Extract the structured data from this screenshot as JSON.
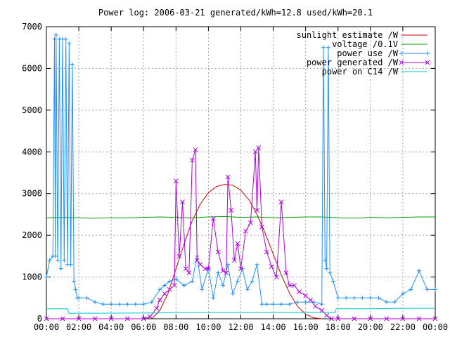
{
  "chart_data": {
    "type": "line",
    "title": "Power log: 2006-03-21 generated/kWh=12.8 used/kWh=20.1",
    "xlabel": "",
    "ylabel": "",
    "xlim": [
      0,
      24
    ],
    "ylim": [
      0,
      7000
    ],
    "grid": true,
    "legend_position": "top-right",
    "x_tick_labels": [
      "00:00",
      "02:00",
      "04:00",
      "06:00",
      "08:00",
      "10:00",
      "12:00",
      "14:00",
      "16:00",
      "18:00",
      "20:00",
      "22:00",
      "00:00"
    ],
    "y_tick_labels": [
      "0",
      "1000",
      "2000",
      "3000",
      "4000",
      "5000",
      "6000",
      "7000"
    ],
    "series": [
      {
        "name": "sunlight estimate /W",
        "color": "#cc0000",
        "marker": "none",
        "x": [
          6.5,
          7.0,
          7.5,
          8.0,
          8.5,
          9.0,
          9.5,
          10.0,
          10.5,
          11.0,
          11.5,
          12.0,
          12.5,
          13.0,
          13.5,
          14.0,
          14.5,
          15.0,
          15.5,
          16.0,
          16.5,
          17.0
        ],
        "y": [
          0,
          200,
          600,
          1200,
          1800,
          2350,
          2750,
          3020,
          3170,
          3220,
          3200,
          3080,
          2850,
          2500,
          2050,
          1550,
          1050,
          620,
          300,
          110,
          20,
          0
        ]
      },
      {
        "name": "voltage /0.1V",
        "color": "#00a000",
        "marker": "none",
        "x": [
          0,
          1,
          2,
          3,
          4,
          5,
          6,
          7,
          8,
          9,
          10,
          11,
          12,
          13,
          14,
          15,
          16,
          17,
          18,
          19,
          20,
          21,
          22,
          23,
          24
        ],
        "y": [
          2420,
          2430,
          2420,
          2410,
          2420,
          2420,
          2430,
          2440,
          2430,
          2420,
          2440,
          2450,
          2430,
          2440,
          2420,
          2430,
          2440,
          2440,
          2420,
          2410,
          2430,
          2420,
          2430,
          2440,
          2440
        ]
      },
      {
        "name": "power use /W",
        "color": "#1e90ff",
        "marker": "plus",
        "x": [
          0,
          0.2,
          0.4,
          0.5,
          0.55,
          0.6,
          0.7,
          0.8,
          0.9,
          1.0,
          1.1,
          1.2,
          1.3,
          1.4,
          1.5,
          1.6,
          1.7,
          1.8,
          1.9,
          2.0,
          2.5,
          3.0,
          3.5,
          4.0,
          4.5,
          5.0,
          5.5,
          6.0,
          6.5,
          7.0,
          7.3,
          7.6,
          8.0,
          8.5,
          9.0,
          9.3,
          9.6,
          10.0,
          10.3,
          10.6,
          10.9,
          11.2,
          11.5,
          11.8,
          12.1,
          12.4,
          12.7,
          13.0,
          13.3,
          13.6,
          14.0,
          14.5,
          15.0,
          15.5,
          16.0,
          16.5,
          17.0,
          17.1,
          17.2,
          17.3,
          17.4,
          17.5,
          17.7,
          18.0,
          18.5,
          19.0,
          19.5,
          20.0,
          20.5,
          21.0,
          21.5,
          22.0,
          22.5,
          23.0,
          23.5,
          24.0
        ],
        "y": [
          1000,
          1400,
          1500,
          6700,
          1500,
          6800,
          1400,
          6700,
          1200,
          6700,
          1400,
          6700,
          1300,
          6600,
          1300,
          6100,
          900,
          700,
          500,
          500,
          500,
          400,
          350,
          350,
          350,
          350,
          350,
          350,
          400,
          700,
          800,
          900,
          950,
          800,
          900,
          1500,
          700,
          1200,
          500,
          1100,
          800,
          1300,
          600,
          900,
          1200,
          700,
          900,
          1300,
          350,
          350,
          350,
          350,
          350,
          400,
          400,
          400,
          350,
          6500,
          1400,
          1200,
          6500,
          1100,
          900,
          500,
          500,
          500,
          500,
          500,
          500,
          400,
          400,
          600,
          700,
          1150,
          700,
          700
        ]
      },
      {
        "name": "power generated /W",
        "color": "#b000e0",
        "marker": "x",
        "x": [
          0,
          1,
          2,
          3,
          4,
          5,
          6,
          6.4,
          6.8,
          7.0,
          7.3,
          7.6,
          7.9,
          8.0,
          8.2,
          8.4,
          8.6,
          8.8,
          9.0,
          9.2,
          9.3,
          9.5,
          9.8,
          10.0,
          10.3,
          10.6,
          10.9,
          11.1,
          11.2,
          11.4,
          11.6,
          11.8,
          12.0,
          12.3,
          12.6,
          12.9,
          13.0,
          13.1,
          13.3,
          13.6,
          13.9,
          14.2,
          14.5,
          14.8,
          15.0,
          15.3,
          15.6,
          16.0,
          16.3,
          16.6,
          17.0,
          17.3,
          17.6,
          18.0,
          19,
          20,
          21,
          22,
          23,
          24
        ],
        "y": [
          0,
          0,
          0,
          0,
          0,
          0,
          0,
          50,
          250,
          450,
          600,
          700,
          800,
          3300,
          1500,
          2800,
          1200,
          1100,
          3800,
          4050,
          1400,
          1300,
          1200,
          1200,
          2400,
          1600,
          1150,
          1100,
          3400,
          2600,
          1400,
          1800,
          1200,
          2100,
          2300,
          4000,
          2600,
          4100,
          2200,
          1600,
          1250,
          1000,
          2800,
          1100,
          800,
          800,
          650,
          550,
          450,
          300,
          200,
          80,
          0,
          0,
          0,
          0,
          0,
          0,
          0,
          0
        ]
      },
      {
        "name": "power on C14 /W",
        "color": "#00c8c8",
        "marker": "none",
        "x": [
          0,
          1.3,
          1.4,
          7.0,
          8.0,
          10.0,
          12.0,
          14.0,
          16.0,
          17.8,
          17.9,
          19.0,
          20.0,
          22.0,
          24.0
        ],
        "y": [
          240,
          240,
          130,
          140,
          150,
          150,
          150,
          150,
          150,
          150,
          240,
          240,
          240,
          250,
          250
        ]
      }
    ]
  }
}
